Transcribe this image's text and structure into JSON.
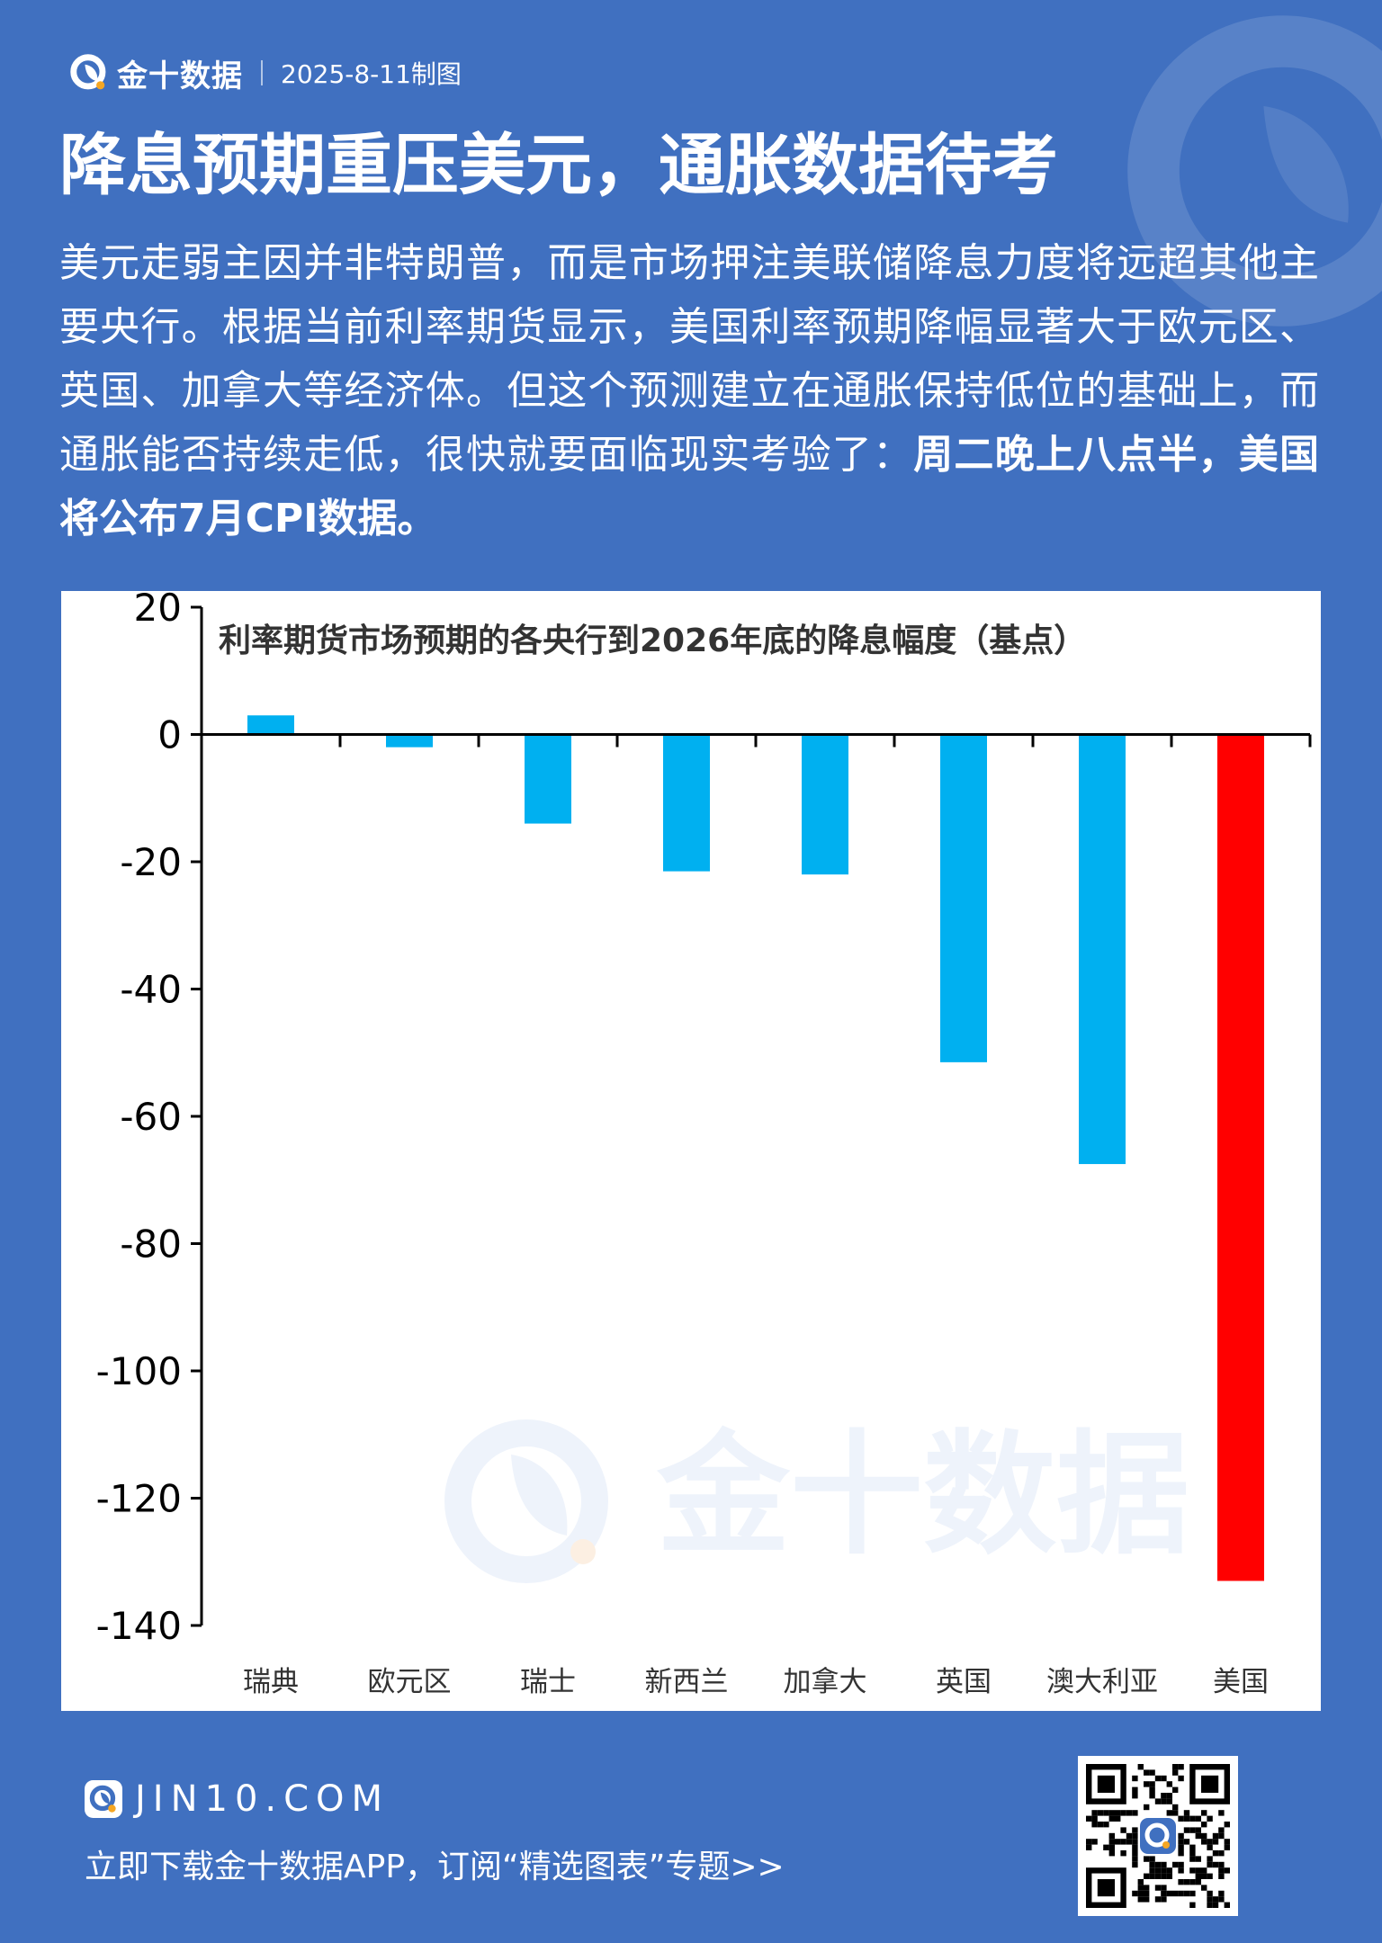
{
  "header": {
    "brand": "金十数据",
    "date": "2025-8-11制图"
  },
  "title": "降息预期重压美元，通胀数据待考",
  "description": {
    "normal": "美元走弱主因并非特朗普，而是市场押注美联储降息力度将远超其他主要央行。根据当前利率期货显示，美国利率预期降幅显著大于欧元区、英国、加拿大等经济体。但这个预测建立在通胀保持低位的基础上，而通胀能否持续走低，很快就要面临现实考验了：",
    "bold": "周二晚上八点半，美国将公布7月CPI数据。"
  },
  "chart_data": {
    "type": "bar",
    "title": "利率期货市场预期的各央行到2026年底的降息幅度（基点）",
    "categories": [
      "瑞典",
      "欧元区",
      "瑞士",
      "新西兰",
      "加拿大",
      "英国",
      "澳大利亚",
      "美国"
    ],
    "values": [
      3,
      -2,
      -14,
      -21.5,
      -22,
      -51.5,
      -67.5,
      -133
    ],
    "colors": [
      "#00b0f0",
      "#00b0f0",
      "#00b0f0",
      "#00b0f0",
      "#00b0f0",
      "#00b0f0",
      "#00b0f0",
      "#ff0000"
    ],
    "ylim": [
      -140,
      20
    ],
    "yticks": [
      "20",
      "0",
      "-20",
      "-40",
      "-60",
      "-80",
      "-100",
      "-120",
      "-140"
    ],
    "grid": false,
    "watermark": "金十数据"
  },
  "footer": {
    "site": "JIN10.COM",
    "cta": "立即下载金十数据APP，订阅“精选图表”专题>>"
  },
  "colors": {
    "background": "#4070c0",
    "bar": "#00b0f0",
    "highlight": "#ff0000"
  },
  "icons": {
    "logo": "jin10-logo-icon",
    "qr": "qr-code-icon"
  }
}
